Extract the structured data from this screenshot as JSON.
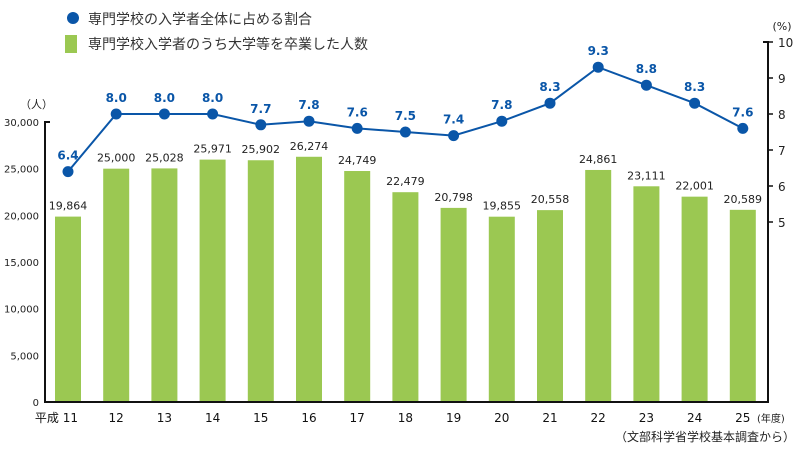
{
  "chart_data": {
    "type": "bar+line",
    "categories": [
      "平成 11",
      "12",
      "13",
      "14",
      "15",
      "16",
      "17",
      "18",
      "19",
      "20",
      "21",
      "22",
      "23",
      "24",
      "25"
    ],
    "x_unit": "(年度)",
    "series": [
      {
        "name": "専門学校入学者のうち大学等を卒業した人数",
        "type": "bar",
        "axis": "left",
        "values": [
          19864,
          25000,
          25028,
          25971,
          25902,
          26274,
          24749,
          22479,
          20798,
          19855,
          20558,
          24861,
          23111,
          22001,
          20589
        ],
        "labels": [
          "19,864",
          "25,000",
          "25,028",
          "25,971",
          "25,902",
          "26,274",
          "24,749",
          "22,479",
          "20,798",
          "19,855",
          "20,558",
          "24,861",
          "23,111",
          "22,001",
          "20,589"
        ]
      },
      {
        "name": "専門学校の入学者全体に占める割合",
        "type": "line",
        "axis": "right",
        "values": [
          6.4,
          8.0,
          8.0,
          8.0,
          7.7,
          7.8,
          7.6,
          7.5,
          7.4,
          7.8,
          8.3,
          9.3,
          8.8,
          8.3,
          7.6
        ],
        "labels": [
          "6.4",
          "8.0",
          "8.0",
          "8.0",
          "7.7",
          "7.8",
          "7.6",
          "7.5",
          "7.4",
          "7.8",
          "8.3",
          "9.3",
          "8.8",
          "8.3",
          "7.6"
        ]
      }
    ],
    "left_axis": {
      "unit": "（人）",
      "ylim": [
        0,
        30000
      ],
      "ticks": [
        "0",
        "5,000",
        "10,000",
        "15,000",
        "20,000",
        "25,000",
        "30,000"
      ]
    },
    "right_axis": {
      "unit": "(%)",
      "ylim": [
        0,
        10
      ],
      "ticks": [
        "5",
        "6",
        "7",
        "8",
        "9",
        "10"
      ]
    },
    "legend_placement": "top-left",
    "source": "（文部科学省学校基本調査から）",
    "colors": {
      "bar": "#9bc852",
      "line": "#0a56a8",
      "label": "#0a56a8"
    },
    "grid": false
  }
}
